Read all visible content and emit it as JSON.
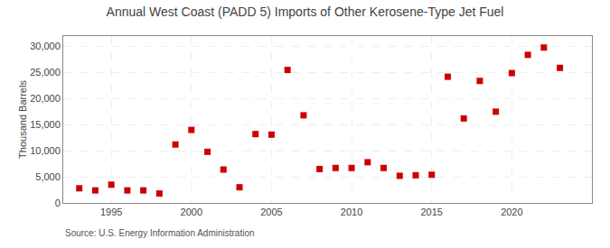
{
  "chart_data": {
    "type": "scatter",
    "title": "Annual West Coast (PADD 5) Imports of Other Kerosene-Type Jet Fuel",
    "ylabel": "Thousand Barrels",
    "annotations": [
      "Source: U.S. Energy Information Administration"
    ],
    "x": [
      1993,
      1994,
      1995,
      1996,
      1997,
      1998,
      1999,
      2000,
      2001,
      2002,
      2003,
      2004,
      2005,
      2006,
      2007,
      2008,
      2009,
      2010,
      2011,
      2012,
      2013,
      2014,
      2015,
      2016,
      2017,
      2018,
      2019,
      2020,
      2021,
      2022,
      2023
    ],
    "values": [
      2800,
      2400,
      3500,
      2400,
      2400,
      1800,
      11200,
      14000,
      9800,
      6400,
      3000,
      13200,
      13100,
      25500,
      16800,
      6500,
      6700,
      6700,
      7800,
      6700,
      5200,
      5300,
      5400,
      24200,
      16200,
      23400,
      17500,
      24900,
      28400,
      29800,
      25900
    ],
    "color": "#cc0000",
    "marker": "square",
    "xlim": [
      1992,
      2025
    ],
    "xticks": [
      1995,
      2000,
      2005,
      2010,
      2015,
      2020
    ],
    "ylim": [
      0,
      32000
    ],
    "yticks": [
      0,
      {
        "value": 5000,
        "label": "5,000"
      },
      {
        "value": 10000,
        "label": "10,000"
      },
      {
        "value": 15000,
        "label": "15,000"
      },
      {
        "value": 20000,
        "label": "20,000"
      },
      {
        "value": 25000,
        "label": "25,000"
      },
      {
        "value": 30000,
        "label": "30,000"
      }
    ],
    "grid": true
  }
}
